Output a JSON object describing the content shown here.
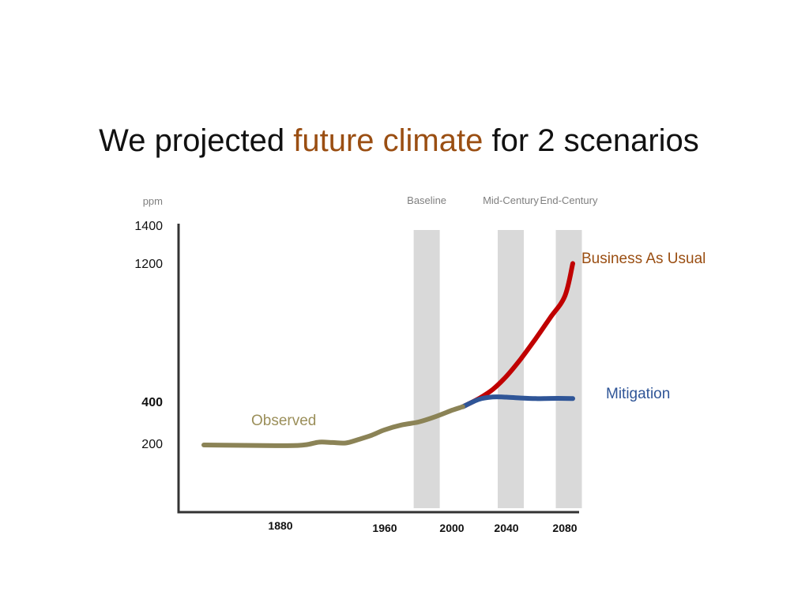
{
  "slide": {
    "title_parts": [
      {
        "text": "We projected ",
        "color": "#111111"
      },
      {
        "text": "future climate",
        "color": "#9a4e12"
      },
      {
        "text": " for 2 scenarios",
        "color": "#111111"
      }
    ]
  },
  "chart_data": {
    "type": "line",
    "title": "",
    "ylabel": "ppm",
    "xlabel": "",
    "y_ticks": [
      {
        "value": 200,
        "label": "200",
        "color": "#111111",
        "bold": false
      },
      {
        "value": 400,
        "label": "400",
        "color": "#e3120b",
        "bold": true
      },
      {
        "value": 1200,
        "label": "1200",
        "color": "#111111",
        "bold": false
      },
      {
        "value": 1400,
        "label": "1400",
        "color": "#111111",
        "bold": false
      }
    ],
    "x_ticks": [
      {
        "value": 1880,
        "label": "1880"
      },
      {
        "value": 1960,
        "label": "1960"
      },
      {
        "value": 2000,
        "label": "2000"
      },
      {
        "value": 2040,
        "label": "2040"
      },
      {
        "value": 2080,
        "label": "2080"
      }
    ],
    "time_periods": [
      {
        "label": "Baseline",
        "center": 1985,
        "color": "#d9d9d9"
      },
      {
        "label": "Mid-Century",
        "center": 2043,
        "color": "#d9d9d9"
      },
      {
        "label": "End-Century",
        "center": 2085,
        "color": "#d9d9d9"
      }
    ],
    "series": [
      {
        "name": "Observed",
        "color": "#8b8356",
        "x": [
          1830,
          1850,
          1870,
          1890,
          1900,
          1910,
          1920,
          1930,
          1940,
          1950,
          1960,
          1970,
          1980,
          1990,
          2000,
          2008
        ],
        "y": [
          195,
          194,
          193,
          193,
          196,
          206,
          204,
          202,
          219,
          239,
          265,
          288,
          302,
          327,
          358,
          375
        ]
      },
      {
        "name": "Business As Usual",
        "color": "#c00000",
        "x": [
          2008,
          2020,
          2030,
          2040,
          2050,
          2060,
          2070,
          2080,
          2090
        ],
        "y": [
          375,
          418,
          470,
          546,
          648,
          763,
          885,
          1010,
          1198
        ]
      },
      {
        "name": "Mitigation",
        "color": "#2f5597",
        "x": [
          2008,
          2020,
          2030,
          2040,
          2050,
          2060,
          2070,
          2080,
          2090
        ],
        "y": [
          375,
          413,
          426,
          425,
          420,
          417,
          418,
          418,
          417
        ]
      }
    ]
  }
}
